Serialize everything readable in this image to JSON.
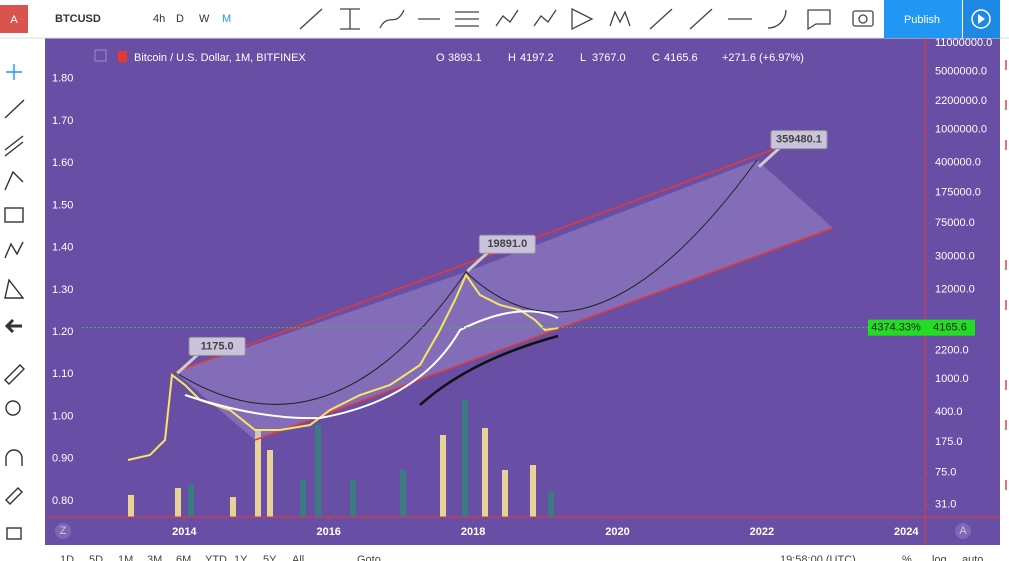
{
  "toolbar": {
    "symbol": "BTCUSD",
    "intervals": [
      "4h",
      "D",
      "W",
      "M"
    ],
    "publish": "Publish",
    "logo": "A"
  },
  "chart_data": {
    "type": "candlestick",
    "title": "Bitcoin / U.S. Dollar, 1M, BITFINEX",
    "ohlc": [
      {
        "label": "O",
        "value": "3893.1"
      },
      {
        "label": "H",
        "value": "4197.2"
      },
      {
        "label": "L",
        "value": "3767.0"
      },
      {
        "label": "C",
        "value": "4165.6"
      }
    ],
    "change": "+271.6 (+6.97%)",
    "xlim": [
      2012.07,
      2024.26
    ],
    "xticks": [
      2014,
      2016,
      2018,
      2020,
      2022,
      2024
    ],
    "ylim": [
      0.762,
      1.892
    ],
    "yticks": [
      {
        "value": 1.8,
        "label": "1.80"
      },
      {
        "value": 1.7,
        "label": "1.70"
      },
      {
        "value": 1.6,
        "label": "1.60"
      },
      {
        "value": 1.5,
        "label": "1.50"
      },
      {
        "value": 1.4,
        "label": "1.40"
      },
      {
        "value": 1.3,
        "label": "1.30"
      },
      {
        "value": 1.2,
        "label": "1.20"
      },
      {
        "value": 1.1,
        "label": "1.10"
      },
      {
        "value": 1,
        "label": "1.00"
      },
      {
        "value": 0.9,
        "label": "0.90"
      },
      {
        "value": 0.8,
        "label": "0.80"
      }
    ],
    "y2_log": true,
    "y2lim": [
      22,
      12000000
    ],
    "y2ticks": [
      {
        "value": 11000000,
        "label": "11000000.0"
      },
      {
        "value": 5000000,
        "label": "5000000.0"
      },
      {
        "value": 2200000,
        "label": "2200000.0"
      },
      {
        "value": 1000000,
        "label": "1000000.0"
      },
      {
        "value": 400000,
        "label": "400000.0"
      },
      {
        "value": 175000,
        "label": "175000.0"
      },
      {
        "value": 75000,
        "label": "75000.0"
      },
      {
        "value": 30000,
        "label": "30000.0"
      },
      {
        "value": 12000,
        "label": "12000.0"
      },
      {
        "value": 2200,
        "label": "2200.0"
      },
      {
        "value": 1000,
        "label": "1000.0"
      },
      {
        "value": 400,
        "label": "400.0"
      },
      {
        "value": 175,
        "label": "175.0"
      },
      {
        "value": 75,
        "label": "75.0"
      },
      {
        "value": 31,
        "label": "31.0"
      }
    ],
    "annotations": [
      {
        "x": 2013.9,
        "value": 1175,
        "label": "1175.0"
      },
      {
        "x": 2017.92,
        "value": 19891,
        "label": "19891.0"
      },
      {
        "x": 2021.96,
        "value": 359480.1,
        "label": "359480.1"
      }
    ],
    "last_price": {
      "value": 4165.6,
      "percent_label": "4374.33%"
    },
    "scale_buttons": [
      "Z",
      "A"
    ]
  },
  "bottom_bar": {
    "ranges": [
      "1D",
      "5D",
      "1M",
      "3M",
      "6M",
      "YTD",
      "1Y",
      "5Y",
      "All"
    ],
    "goto": "Goto...",
    "time": "19:58:00 (UTC)",
    "options": [
      "%",
      "log",
      "auto"
    ]
  }
}
